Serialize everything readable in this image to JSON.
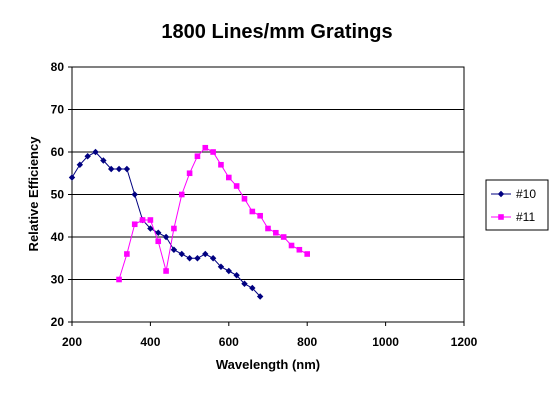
{
  "chart_data": {
    "type": "line",
    "title": "1800 Lines/mm Gratings",
    "xlabel": "Wavelength (nm)",
    "ylabel": "Relative Efficiency",
    "xlim": [
      200,
      1200
    ],
    "ylim": [
      20,
      80
    ],
    "xticks": [
      200,
      400,
      600,
      800,
      1000,
      1200
    ],
    "yticks": [
      20,
      30,
      40,
      50,
      60,
      70,
      80
    ],
    "grid": "horizontal",
    "legend_position": "right",
    "series": [
      {
        "name": "#10",
        "color": "#000080",
        "marker": "diamond",
        "x": [
          200,
          220,
          240,
          260,
          280,
          300,
          320,
          340,
          360,
          380,
          400,
          420,
          440,
          460,
          480,
          500,
          520,
          540,
          560,
          580,
          600,
          620,
          640,
          660,
          680
        ],
        "y": [
          54,
          57,
          59,
          60,
          58,
          56,
          56,
          56,
          50,
          44,
          42,
          41,
          40,
          37,
          36,
          35,
          35,
          36,
          35,
          33,
          32,
          31,
          29,
          28,
          26
        ]
      },
      {
        "name": "#11",
        "color": "#ff00ff",
        "marker": "square",
        "x": [
          320,
          340,
          360,
          380,
          400,
          420,
          440,
          460,
          480,
          500,
          520,
          540,
          560,
          580,
          600,
          620,
          640,
          660,
          680,
          700,
          720,
          740,
          760,
          780,
          800
        ],
        "y": [
          30,
          36,
          43,
          44,
          44,
          39,
          32,
          42,
          50,
          55,
          59,
          61,
          60,
          57,
          54,
          52,
          49,
          46,
          45,
          42,
          41,
          40,
          38,
          37,
          36
        ]
      }
    ]
  }
}
